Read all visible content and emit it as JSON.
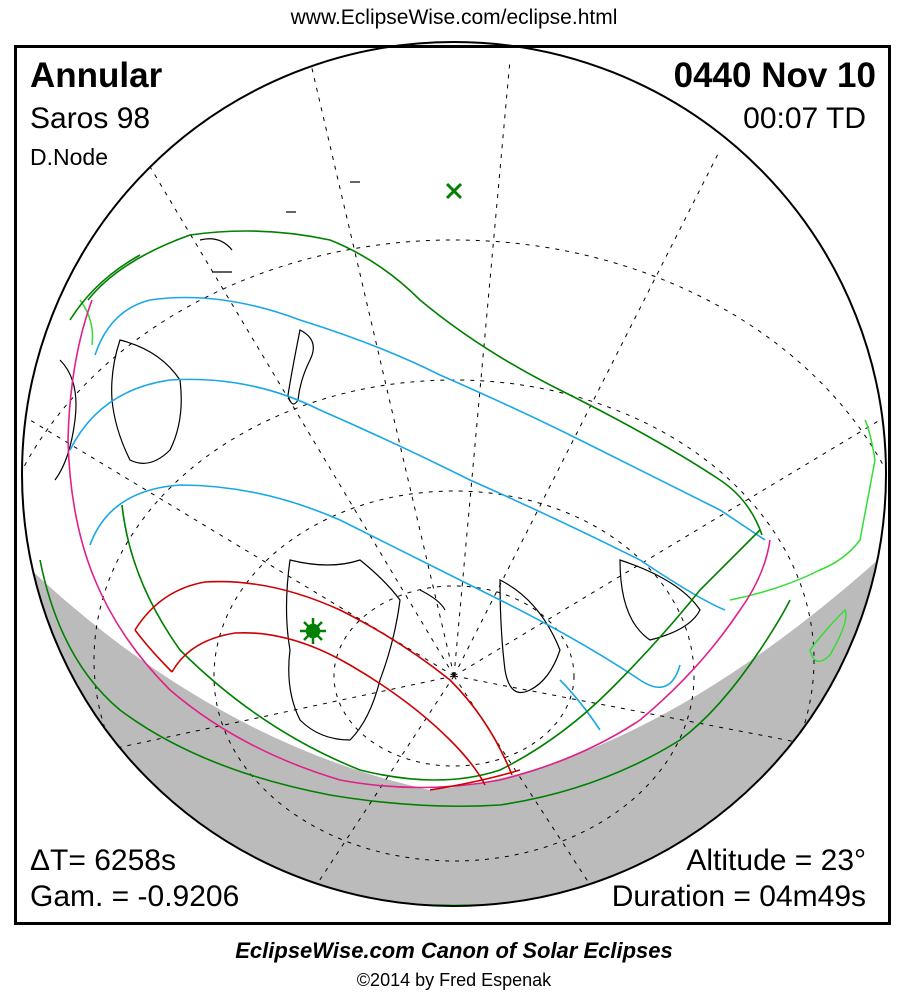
{
  "header": {
    "url": "www.EclipseWise.com/eclipse.html"
  },
  "eclipse": {
    "type": "Annular",
    "date": "0440 Nov 10",
    "saros": "Saros  98",
    "time": "00:07 TD",
    "node": "D.Node",
    "delta_t": "ΔT=   6258s",
    "gamma": "Gam. = -0.9206",
    "altitude": "Altitude = 23°",
    "duration": "Duration = 04m49s"
  },
  "footer": {
    "title": "EclipseWise.com Canon of Solar Eclipses",
    "copyright": "©2014 by Fred Espenak"
  },
  "colors": {
    "penumbral_limit": "#008000",
    "umbral_path": "#cc0000",
    "rise_set_curve": "#e0208a",
    "eclipse_magnitude": "#1aa7e6",
    "night_shading": "#bbbbbb",
    "greatest_eclipse_marker": "#008000",
    "sub_solar_marker": "#008000",
    "coastline_dark": "#000000",
    "coastline_lit": "#33dd33"
  }
}
